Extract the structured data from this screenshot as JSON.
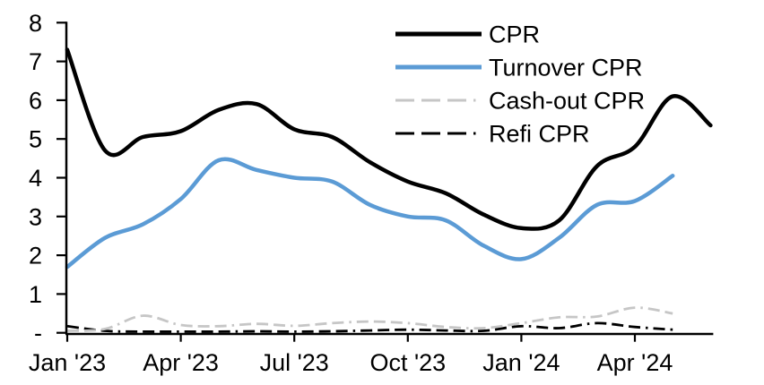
{
  "chart_data": {
    "type": "line",
    "title": "",
    "xlabel": "",
    "ylabel": "",
    "ylim": [
      0,
      8
    ],
    "grid": false,
    "legend_position": "top-right",
    "x": [
      "Jan '23",
      "Feb '23",
      "Mar '23",
      "Apr '23",
      "May '23",
      "Jun '23",
      "Jul '23",
      "Aug '23",
      "Sep '23",
      "Oct '23",
      "Nov '23",
      "Dec '23",
      "Jan '24",
      "Feb '24",
      "Mar '24",
      "Apr '24",
      "May '24",
      "Jun '24"
    ],
    "x_tick_indices": [
      0,
      3,
      6,
      9,
      12,
      15
    ],
    "x_tick_labels": [
      "Jan '23",
      "Apr '23",
      "Jul '23",
      "Oct '23",
      "Jan '24",
      "Apr '24"
    ],
    "y_ticks": [
      {
        "label": "8",
        "value": 8
      },
      {
        "label": "7",
        "value": 7
      },
      {
        "label": "6",
        "value": 6
      },
      {
        "label": "5",
        "value": 5
      },
      {
        "label": "4",
        "value": 4
      },
      {
        "label": "3",
        "value": 3
      },
      {
        "label": "2",
        "value": 2
      },
      {
        "label": "1",
        "value": 1
      },
      {
        "label": "-",
        "value": 0
      }
    ],
    "axis_color": "#000000",
    "series": [
      {
        "name": "CPR",
        "color": "#000000",
        "style": "solid",
        "values": [
          7.3,
          4.7,
          5.05,
          5.2,
          5.75,
          5.9,
          5.25,
          5.05,
          4.4,
          3.9,
          3.6,
          3.05,
          2.7,
          2.9,
          4.3,
          4.8,
          6.1,
          5.35
        ]
      },
      {
        "name": "Turnover CPR",
        "color": "#5B9BD5",
        "style": "solid",
        "values": [
          1.7,
          2.45,
          2.8,
          3.45,
          4.45,
          4.2,
          4.0,
          3.9,
          3.3,
          3.0,
          2.9,
          2.25,
          1.9,
          2.45,
          3.3,
          3.4,
          4.05
        ]
      },
      {
        "name": "Cash-out CPR",
        "color": "#C6C6C6",
        "style": "dashed",
        "values": [
          0.05,
          0.1,
          0.44,
          0.2,
          0.17,
          0.23,
          0.18,
          0.25,
          0.29,
          0.25,
          0.15,
          0.12,
          0.25,
          0.4,
          0.42,
          0.65,
          0.5
        ]
      },
      {
        "name": "Refi CPR",
        "color": "#000000",
        "style": "dashed",
        "values": [
          0.17,
          0.05,
          0.03,
          0.03,
          0.03,
          0.04,
          0.03,
          0.04,
          0.06,
          0.08,
          0.06,
          0.05,
          0.17,
          0.12,
          0.25,
          0.15,
          0.08
        ]
      }
    ]
  }
}
